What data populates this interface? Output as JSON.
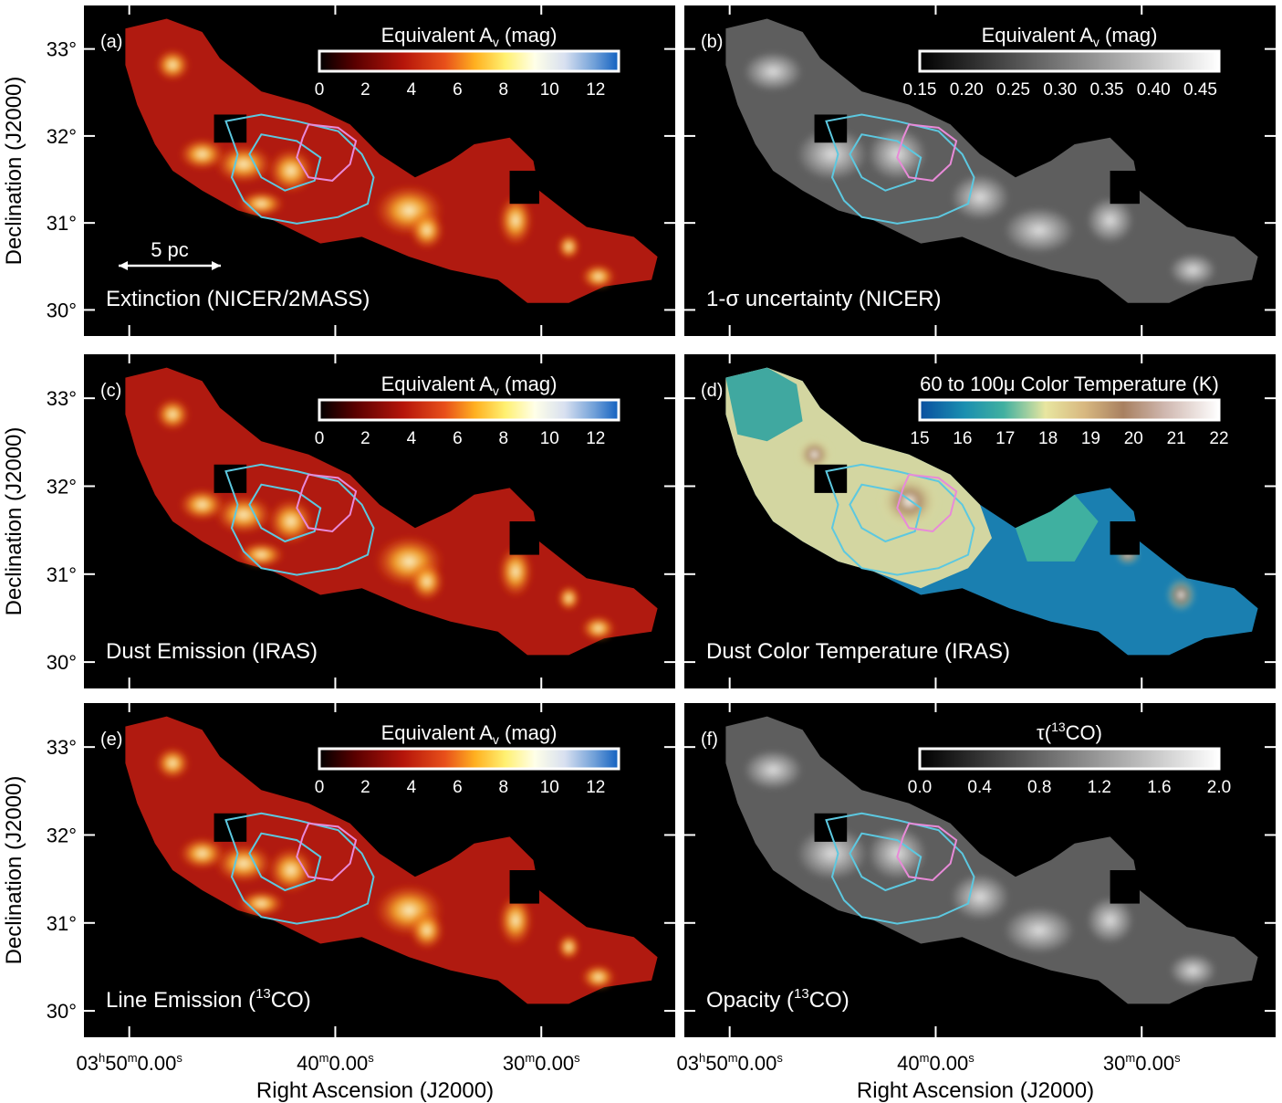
{
  "chart_data": {
    "type": "heatmap",
    "layout": "3x2 panel grid of sky maps",
    "ylabel": "Declination (J2000)",
    "xlabel": "Right Ascension (J2000)",
    "yticks": [
      {
        "label": "33°",
        "deg": 33
      },
      {
        "label": "32°",
        "deg": 32
      },
      {
        "label": "31°",
        "deg": 31
      },
      {
        "label": "30°",
        "deg": 30
      }
    ],
    "xticks": [
      {
        "h": "03",
        "m": "50",
        "s": "0.00",
        "ra_min": 50
      },
      {
        "h": "",
        "m": "40",
        "s": "0.00",
        "ra_min": 40
      },
      {
        "h": "",
        "m": "30",
        "s": "0.00",
        "ra_min": 30
      }
    ],
    "ra_range_min": [
      52.2,
      23.5
    ],
    "dec_range_deg": [
      29.7,
      33.5
    ],
    "scale_bar": {
      "label": "5 pc"
    },
    "panels": [
      {
        "tag": "(a)",
        "caption": "Extinction (NICER/2MASS)",
        "cb_title": "Equivalent A",
        "cb_sub": "v",
        "cb_unit": " (mag)",
        "cb_ticks": [
          "0",
          "2",
          "4",
          "6",
          "8",
          "10",
          "12"
        ],
        "colormap": "red-yellow-white-blue",
        "cb_range": [
          0,
          13
        ],
        "contours": true,
        "scale_bar": true
      },
      {
        "tag": "(b)",
        "caption": "1-σ uncertainty (NICER)",
        "cb_title": "Equivalent A",
        "cb_sub": "v",
        "cb_unit": " (mag)",
        "cb_ticks": [
          "0.15",
          "0.20",
          "0.25",
          "0.30",
          "0.35",
          "0.40",
          "0.45"
        ],
        "colormap": "gray",
        "cb_range": [
          0.15,
          0.47
        ],
        "contours": true,
        "scale_bar": false
      },
      {
        "tag": "(c)",
        "caption": "Dust Emission (IRAS)",
        "cb_title": "Equivalent A",
        "cb_sub": "v",
        "cb_unit": " (mag)",
        "cb_ticks": [
          "0",
          "2",
          "4",
          "6",
          "8",
          "10",
          "12"
        ],
        "colormap": "red-yellow-white-blue",
        "cb_range": [
          0,
          13
        ],
        "contours": true,
        "scale_bar": false
      },
      {
        "tag": "(d)",
        "caption": "Dust Color Temperature (IRAS)",
        "cb_title": "60 to 100μ Color Temperature (K)",
        "cb_sub": "",
        "cb_unit": "",
        "cb_ticks": [
          "15",
          "16",
          "17",
          "18",
          "19",
          "20",
          "21",
          "22"
        ],
        "colormap": "blue-teal-yellow-brown-white",
        "cb_range": [
          15,
          22
        ],
        "contours": true,
        "scale_bar": false
      },
      {
        "tag": "(e)",
        "caption_pre": "Line Emission (",
        "caption_sup": "13",
        "caption_post": "CO)",
        "cb_title": "Equivalent A",
        "cb_sub": "v",
        "cb_unit": " (mag)",
        "cb_ticks": [
          "0",
          "2",
          "4",
          "6",
          "8",
          "10",
          "12"
        ],
        "colormap": "red-yellow-white-blue",
        "cb_range": [
          0,
          13
        ],
        "contours": true,
        "scale_bar": false
      },
      {
        "tag": "(f)",
        "caption_pre": "Opacity (",
        "caption_sup": "13",
        "caption_post": "CO)",
        "cb_title_pre": "τ(",
        "cb_title_sup": "13",
        "cb_title_post": "CO)",
        "cb_ticks": [
          "0.0",
          "0.4",
          "0.8",
          "1.2",
          "1.6",
          "2.0"
        ],
        "colormap": "gray",
        "cb_range": [
          0,
          2.0
        ],
        "contours": true,
        "scale_bar": false
      }
    ]
  },
  "colors": {
    "background": "#000000",
    "contour_cyan": "#5cc8e0",
    "contour_pink": "#e88ad8",
    "map_red": "#b01a10"
  }
}
